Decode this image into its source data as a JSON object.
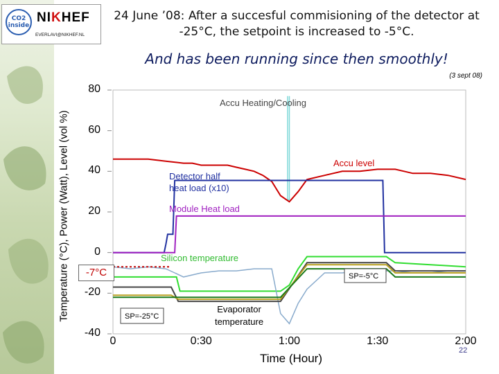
{
  "logo": {
    "co2_line1": "CO2",
    "co2_line2": "inside",
    "org_left": "NI",
    "org_mid": "K",
    "org_right": "HEF",
    "email": "EVERLAVI@NIKHEF.NL"
  },
  "title": "24 June ’08: After a succesful commisioning of the detector at -25°C, the setpoint is increased to -5°C.",
  "subtitle": "And has been running since then smoothly!",
  "date_note": "(3 sept 08)",
  "page_number": "22",
  "chart_data": {
    "type": "line",
    "xlabel": "Time (Hour)",
    "ylabel": "Temperature (°C), Power (Watt), Level (vol %)",
    "xlim": [
      0,
      2.0
    ],
    "ylim": [
      -40,
      80
    ],
    "xticks": [
      {
        "value": 0.0,
        "label": "0"
      },
      {
        "value": 0.5,
        "label": "0:30"
      },
      {
        "value": 1.0,
        "label": "1:00"
      },
      {
        "value": 1.5,
        "label": "1:30"
      },
      {
        "value": 2.0,
        "label": "2:00"
      }
    ],
    "yticks": [
      {
        "value": 80,
        "label": "80"
      },
      {
        "value": 60,
        "label": "60"
      },
      {
        "value": 40,
        "label": "40"
      },
      {
        "value": 20,
        "label": "20"
      },
      {
        "value": 0,
        "label": "0"
      },
      {
        "value": -20,
        "label": "-20"
      },
      {
        "value": -40,
        "label": "-40"
      }
    ],
    "reference_label": "-7°C",
    "reference_value": -7,
    "series": [
      {
        "name": "Accu Heating/Cooling",
        "color": "#7ed8d8",
        "x": [
          0.0,
          0.98,
          0.985,
          1.0,
          1.5,
          1.51,
          1.55,
          2.0
        ],
        "y": [
          80,
          80,
          80,
          80,
          80,
          80,
          80,
          80
        ]
      },
      {
        "name": "Accu level",
        "color": "#cc0000",
        "x": [
          0.0,
          0.1,
          0.2,
          0.3,
          0.4,
          0.45,
          0.5,
          0.55,
          0.6,
          0.65,
          0.7,
          0.75,
          0.8,
          0.85,
          0.9,
          0.95,
          1.0,
          1.05,
          1.1,
          1.2,
          1.3,
          1.4,
          1.5,
          1.55,
          1.6,
          1.65,
          1.7,
          1.8,
          1.9,
          2.0
        ],
        "y": [
          46,
          46,
          46,
          45,
          44,
          44,
          43,
          43,
          43,
          43,
          42,
          41,
          40,
          38,
          35,
          28,
          25,
          30,
          36,
          38,
          40,
          40,
          41,
          41,
          41,
          40,
          39,
          39,
          38,
          36
        ]
      },
      {
        "name": "Detector half heat load (x10)",
        "color": "#2030a0",
        "x": [
          0.0,
          0.29,
          0.3,
          0.31,
          0.34,
          0.35,
          1.53,
          1.54,
          2.0
        ],
        "y": [
          0,
          0,
          4,
          9,
          9,
          35.5,
          35.5,
          0,
          0
        ]
      },
      {
        "name": "Module Heat load",
        "color": "#a020c0",
        "x": [
          0.0,
          0.29,
          0.35,
          0.36,
          2.0
        ],
        "y": [
          0,
          0,
          0,
          18,
          18
        ]
      },
      {
        "name": "Silicon temperature",
        "color": "#30dd30",
        "x": [
          0.0,
          0.28,
          0.36,
          0.38,
          0.95,
          1.0,
          1.05,
          1.1,
          1.55,
          1.6,
          2.0
        ],
        "y": [
          -12,
          -12,
          -12,
          -19,
          -19,
          -16,
          -8,
          -2,
          -2,
          -5,
          -7
        ]
      },
      {
        "name": "Evaporator temperature",
        "color": "#88aacc",
        "x": [
          0.0,
          0.1,
          0.2,
          0.3,
          0.35,
          0.4,
          0.5,
          0.6,
          0.7,
          0.8,
          0.9,
          0.95,
          1.0,
          1.05,
          1.1,
          1.2,
          1.3,
          1.4,
          1.5,
          1.6,
          1.7,
          1.8,
          1.9,
          2.0
        ],
        "y": [
          -7,
          -8,
          -7,
          -8,
          -10,
          -12,
          -10,
          -9,
          -9,
          -8,
          -8,
          -30,
          -35,
          -25,
          -18,
          -10,
          -10,
          -9,
          -9,
          -9,
          -10,
          -10,
          -9,
          -9
        ]
      }
    ],
    "annotations": {
      "accu_heating": "Accu Heating/Cooling",
      "accu_level": "Accu level",
      "detector_half_line1": "Detector half",
      "detector_half_line2": "heat load (x10)",
      "module_heat": "Module Heat load",
      "silicon": "Silicon temperature",
      "sp_minus25": "SP=-25°C",
      "evaporator_line1": "Evaporator",
      "evaporator_line2": "temperature",
      "sp_minus5": "SP=-5°C"
    }
  }
}
